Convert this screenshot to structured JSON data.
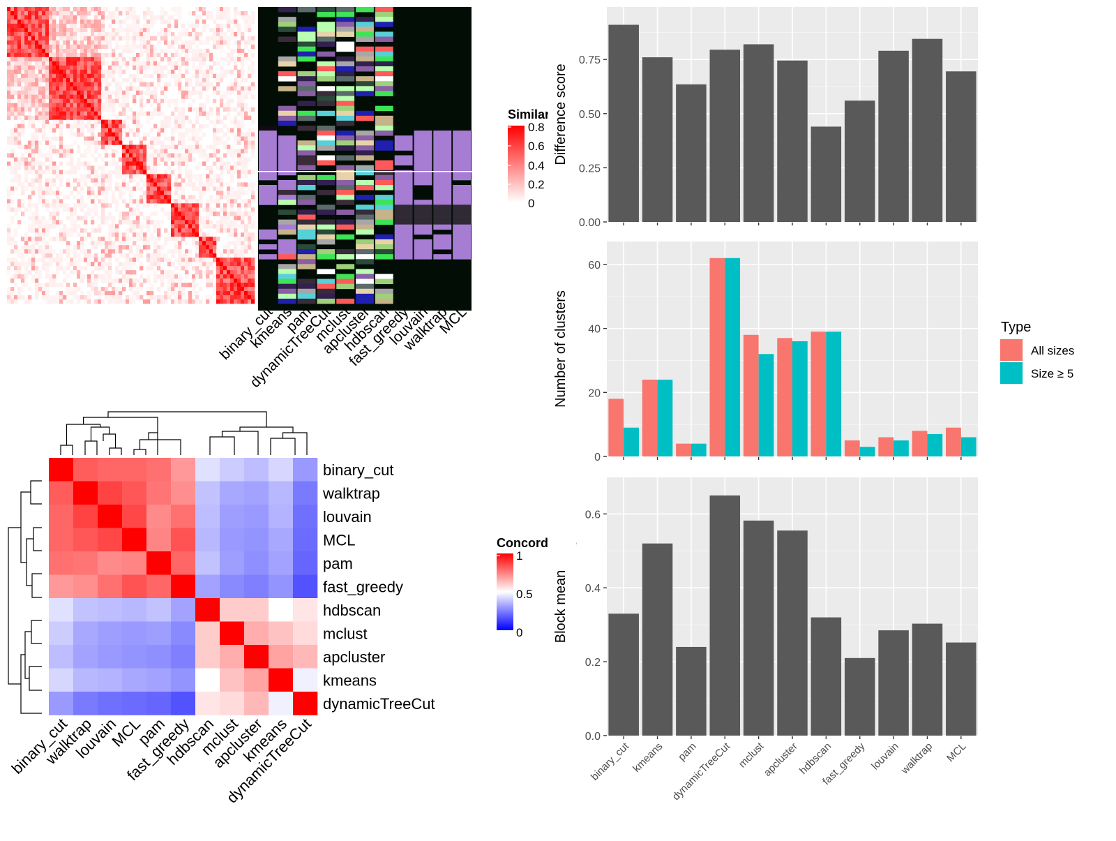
{
  "method_order": [
    "binary_cut",
    "kmeans",
    "pam",
    "dynamicTreeCut",
    "mclust",
    "apcluster",
    "hdbscan",
    "fast_greedy",
    "louvain",
    "walktrap",
    "MCL"
  ],
  "similarity_heatmap": {
    "legend_title": "Similarity",
    "legend_ticks": [
      "0.8",
      "0.6",
      "0.4",
      "0.2",
      "0"
    ],
    "colors": {
      "low": "#ffffff",
      "high": "#ff0000"
    }
  },
  "concordance_heatmap": {
    "legend_title": "Concordance",
    "legend_ticks": [
      "1",
      "0.5",
      "0"
    ],
    "colors": {
      "low": "#0000ff",
      "mid": "#ffffff",
      "high": "#ff0000"
    }
  },
  "chart_data": [
    {
      "type": "heatmap",
      "name": "concordance",
      "rows": [
        "binary_cut",
        "walktrap",
        "louvain",
        "MCL",
        "pam",
        "fast_greedy",
        "hdbscan",
        "mclust",
        "apcluster",
        "kmeans",
        "dynamicTreeCut"
      ],
      "cols": [
        "binary_cut",
        "walktrap",
        "louvain",
        "MCL",
        "pam",
        "fast_greedy",
        "hdbscan",
        "mclust",
        "apcluster",
        "kmeans",
        "dynamicTreeCut"
      ],
      "values": [
        [
          1.0,
          0.82,
          0.8,
          0.8,
          0.78,
          0.7,
          0.44,
          0.4,
          0.37,
          0.42,
          0.3
        ],
        [
          0.82,
          1.0,
          0.87,
          0.83,
          0.77,
          0.72,
          0.38,
          0.33,
          0.32,
          0.36,
          0.24
        ],
        [
          0.8,
          0.87,
          1.0,
          0.86,
          0.73,
          0.78,
          0.37,
          0.31,
          0.3,
          0.35,
          0.22
        ],
        [
          0.8,
          0.83,
          0.86,
          1.0,
          0.74,
          0.84,
          0.36,
          0.3,
          0.29,
          0.33,
          0.21
        ],
        [
          0.78,
          0.77,
          0.73,
          0.74,
          1.0,
          0.8,
          0.38,
          0.31,
          0.28,
          0.32,
          0.2
        ],
        [
          0.7,
          0.72,
          0.78,
          0.84,
          0.8,
          1.0,
          0.32,
          0.27,
          0.25,
          0.29,
          0.16
        ],
        [
          0.44,
          0.38,
          0.37,
          0.36,
          0.38,
          0.32,
          1.0,
          0.6,
          0.6,
          0.5,
          0.55
        ],
        [
          0.4,
          0.33,
          0.31,
          0.3,
          0.31,
          0.27,
          0.6,
          1.0,
          0.66,
          0.62,
          0.57
        ],
        [
          0.37,
          0.32,
          0.3,
          0.29,
          0.28,
          0.25,
          0.6,
          0.66,
          1.0,
          0.68,
          0.64
        ],
        [
          0.42,
          0.36,
          0.35,
          0.33,
          0.32,
          0.29,
          0.5,
          0.62,
          0.68,
          1.0,
          0.47
        ],
        [
          0.3,
          0.24,
          0.22,
          0.21,
          0.2,
          0.16,
          0.55,
          0.57,
          0.64,
          0.47,
          1.0
        ]
      ],
      "legend_range": [
        0,
        1
      ]
    },
    {
      "type": "bar",
      "name": "difference_score",
      "categories": [
        "binary_cut",
        "kmeans",
        "pam",
        "dynamicTreeCut",
        "mclust",
        "apcluster",
        "hdbscan",
        "fast_greedy",
        "louvain",
        "walktrap",
        "MCL"
      ],
      "values": [
        0.91,
        0.76,
        0.635,
        0.795,
        0.82,
        0.745,
        0.44,
        0.56,
        0.79,
        0.845,
        0.695
      ],
      "xlabel": "",
      "ylabel": "Difference score",
      "ylim": [
        0,
        0.96
      ],
      "yticks": [
        "0.00",
        "0.25",
        "0.50",
        "0.75"
      ],
      "grid": true
    },
    {
      "type": "bar",
      "name": "number_of_clusters",
      "categories": [
        "binary_cut",
        "kmeans",
        "pam",
        "dynamicTreeCut",
        "mclust",
        "apcluster",
        "hdbscan",
        "fast_greedy",
        "louvain",
        "walktrap",
        "MCL"
      ],
      "series": [
        {
          "name": "All sizes",
          "color": "#f8766d",
          "values": [
            18,
            24,
            4,
            62,
            38,
            37,
            39,
            5,
            6,
            8,
            9
          ]
        },
        {
          "name": "Size ≥ 5",
          "color": "#00bfc4",
          "values": [
            9,
            24,
            4,
            62,
            32,
            36,
            39,
            3,
            5,
            7,
            6
          ]
        }
      ],
      "xlabel": "",
      "ylabel": "Number of clusters",
      "ylim": [
        0,
        65
      ],
      "yticks": [
        "0",
        "20",
        "40",
        "60"
      ],
      "legend_title": "Type",
      "legend_position": "right",
      "grid": true
    },
    {
      "type": "bar",
      "name": "block_mean",
      "categories": [
        "binary_cut",
        "kmeans",
        "pam",
        "dynamicTreeCut",
        "mclust",
        "apcluster",
        "hdbscan",
        "fast_greedy",
        "louvain",
        "walktrap",
        "MCL"
      ],
      "values": [
        0.33,
        0.52,
        0.24,
        0.65,
        0.582,
        0.555,
        0.32,
        0.21,
        0.285,
        0.303,
        0.252
      ],
      "xlabel": "",
      "ylabel": "Block mean",
      "ylim": [
        0,
        0.68
      ],
      "yticks": [
        "0.0",
        "0.2",
        "0.4",
        "0.6"
      ],
      "grid": true
    }
  ]
}
